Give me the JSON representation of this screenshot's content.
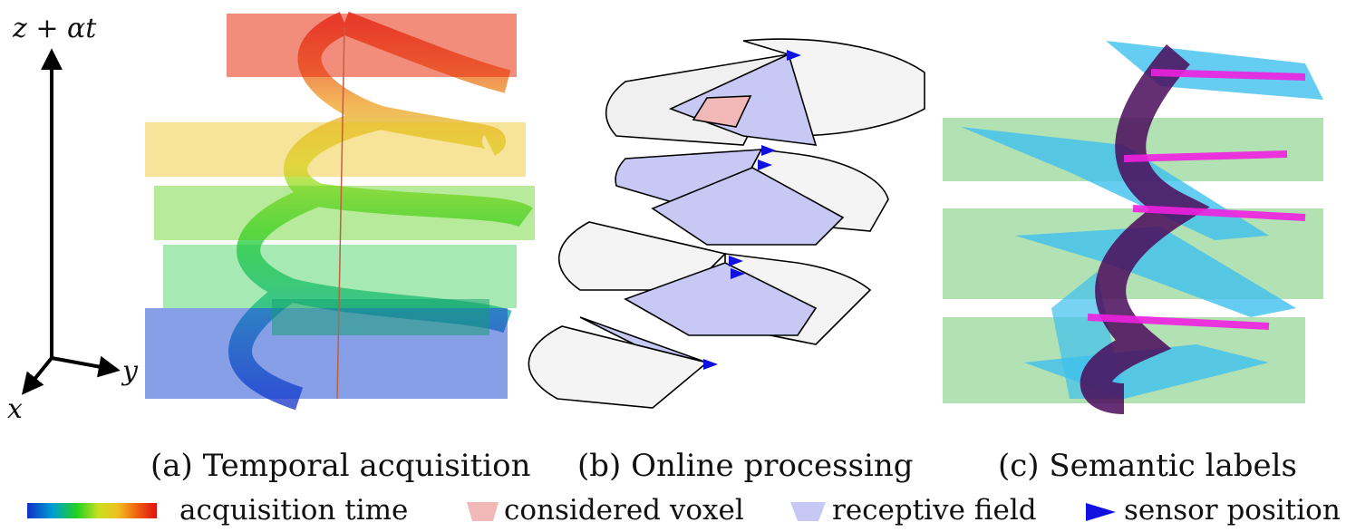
{
  "axes": {
    "vertical": "z + αt",
    "horizontal": "y",
    "depth": "x"
  },
  "captions": [
    "(a) Temporal acquisition",
    "(b) Online processing",
    "(c) Semantic labels"
  ],
  "legend": {
    "acquisition_time": "acquisition time",
    "considered_voxel": "considered voxel",
    "receptive_field": "receptive field",
    "sensor_position": "sensor position"
  },
  "colors": {
    "time_gradient": [
      "#1030c8",
      "#00a0d0",
      "#20d020",
      "#c8e020",
      "#f0c020",
      "#f06010",
      "#e01010"
    ],
    "considered_voxel": "#f2b8b8",
    "receptive_field": "#c8c8f4",
    "sensor": "#1010e0",
    "label_sky": "#3ec0ee",
    "label_green": "#22a828",
    "label_magenta": "#f020e0",
    "label_purple": "#4a0a5a",
    "label_blue": "#2030c0"
  }
}
